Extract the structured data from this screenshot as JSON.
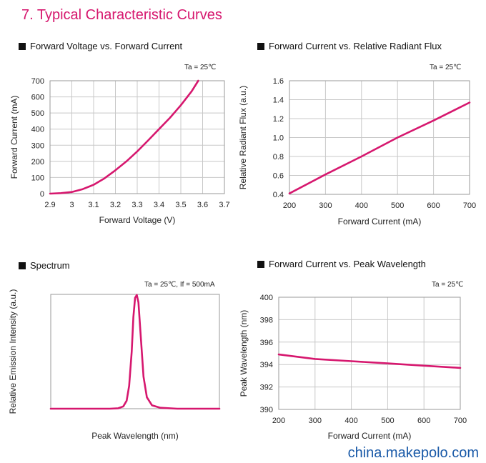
{
  "title": "7. Typical Characteristic Curves",
  "watermark": "china.makepolo.com",
  "colors": {
    "title": "#d6176e",
    "curve": "#d6176e",
    "grid": "#c8c8c8",
    "watermark": "#1a5aa8"
  },
  "chart_data": [
    {
      "type": "line",
      "title": "Forward Voltage vs. Forward Current",
      "condition": "Ta = 25℃",
      "xlabel": "Forward Voltage (V)",
      "ylabel": "Forward Current (mA)",
      "xlim": [
        2.9,
        3.7
      ],
      "ylim": [
        0,
        700
      ],
      "xticks": [
        "2.9",
        "3",
        "3.1",
        "3.2",
        "3.3",
        "3.4",
        "3.5",
        "3.6",
        "3.7"
      ],
      "yticks": [
        "0",
        "100",
        "200",
        "300",
        "400",
        "500",
        "600",
        "700"
      ],
      "grid": true,
      "series": [
        {
          "x": [
            2.9,
            2.95,
            3.0,
            3.05,
            3.1,
            3.15,
            3.2,
            3.25,
            3.3,
            3.35,
            3.4,
            3.45,
            3.5,
            3.55,
            3.58
          ],
          "y": [
            0,
            3,
            10,
            28,
            55,
            95,
            145,
            200,
            262,
            330,
            400,
            470,
            548,
            635,
            700
          ]
        }
      ]
    },
    {
      "type": "line",
      "title": "Forward Current vs. Relative Radiant Flux",
      "condition": "Ta = 25℃",
      "xlabel": "Forward Current (mA)",
      "ylabel": "Relative Radiant Flux (a.u.)",
      "xlim": [
        200,
        700
      ],
      "ylim": [
        0.4,
        1.6
      ],
      "xticks": [
        "200",
        "300",
        "400",
        "500",
        "600",
        "700"
      ],
      "yticks": [
        "0.4",
        "0.6",
        "0.8",
        "1.0",
        "1.2",
        "1.4",
        "1.6"
      ],
      "grid": true,
      "series": [
        {
          "x": [
            200,
            300,
            400,
            500,
            600,
            700
          ],
          "y": [
            0.41,
            0.61,
            0.8,
            1.0,
            1.18,
            1.37
          ]
        }
      ]
    },
    {
      "type": "line",
      "title": "Spectrum",
      "condition": "Ta = 25℃,  If = 500mA",
      "xlabel": "Peak Wavelength (nm)",
      "ylabel": "Relative Emission Intensity (a.u.)",
      "xlim": [
        0,
        100
      ],
      "ylim": [
        0,
        1
      ],
      "xticks": [],
      "yticks": [],
      "grid": false,
      "series": [
        {
          "x": [
            0,
            20,
            35,
            40,
            43,
            45,
            46.5,
            48,
            49,
            50,
            51,
            52,
            53.5,
            55,
            57,
            60,
            65,
            75,
            100
          ],
          "y": [
            0,
            0,
            0,
            0.004,
            0.02,
            0.07,
            0.2,
            0.5,
            0.8,
            0.97,
            0.995,
            0.93,
            0.6,
            0.28,
            0.1,
            0.03,
            0.008,
            0,
            0
          ]
        }
      ]
    },
    {
      "type": "line",
      "title": "Forward Current vs. Peak Wavelength",
      "condition": "Ta = 25℃",
      "xlabel": "Forward Current (mA)",
      "ylabel": "Peak Wavelength (nm)",
      "xlim": [
        200,
        700
      ],
      "ylim": [
        390,
        400
      ],
      "xticks": [
        "200",
        "300",
        "400",
        "500",
        "600",
        "700"
      ],
      "yticks": [
        "390",
        "392",
        "394",
        "396",
        "398",
        "400"
      ],
      "grid": true,
      "series": [
        {
          "x": [
            200,
            300,
            400,
            500,
            600,
            700
          ],
          "y": [
            394.9,
            394.5,
            394.3,
            394.1,
            393.9,
            393.7
          ]
        }
      ]
    }
  ]
}
